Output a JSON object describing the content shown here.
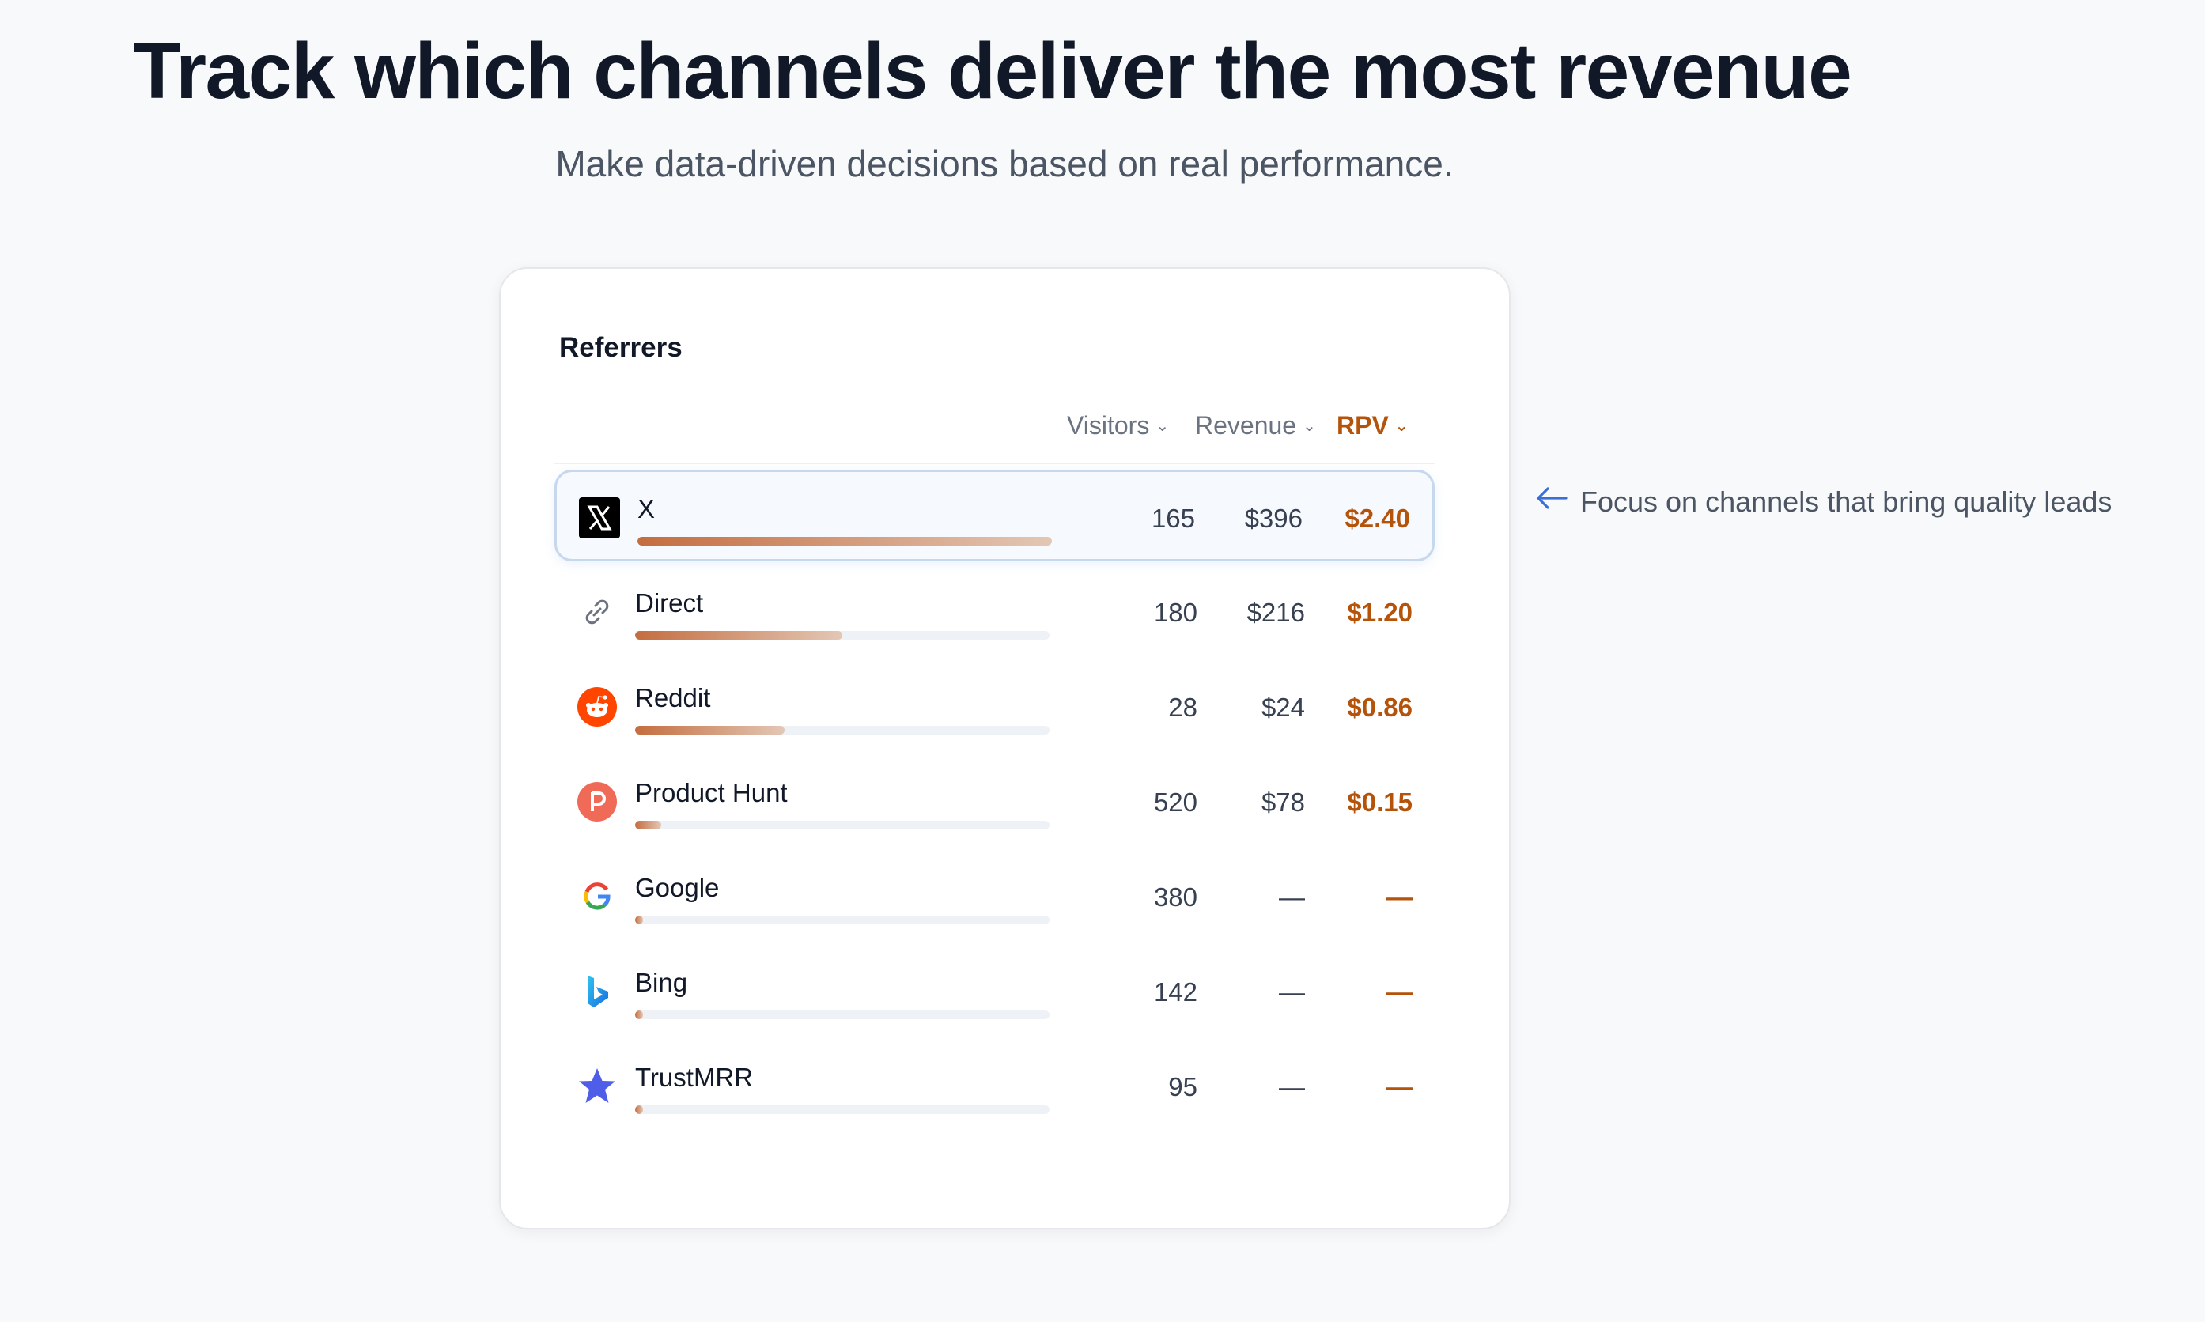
{
  "headline": "Track which channels deliver the most revenue",
  "subheadline": "Make data-driven decisions based on real performance.",
  "card": {
    "title": "Referrers",
    "columns": {
      "visitors": "Visitors",
      "revenue": "Revenue",
      "rpv": "RPV"
    },
    "rows": [
      {
        "name": "X",
        "visitors": "165",
        "revenue": "$396",
        "rpv": "$2.40",
        "bar": 1.0,
        "icon": "x-logo-icon"
      },
      {
        "name": "Direct",
        "visitors": "180",
        "revenue": "$216",
        "rpv": "$1.20",
        "bar": 0.5,
        "icon": "link-icon"
      },
      {
        "name": "Reddit",
        "visitors": "28",
        "revenue": "$24",
        "rpv": "$0.86",
        "bar": 0.36,
        "icon": "reddit-icon"
      },
      {
        "name": "Product Hunt",
        "visitors": "520",
        "revenue": "$78",
        "rpv": "$0.15",
        "bar": 0.063,
        "icon": "product-hunt-icon"
      },
      {
        "name": "Google",
        "visitors": "380",
        "revenue": "—",
        "rpv": "—",
        "bar": 0.02,
        "icon": "google-icon"
      },
      {
        "name": "Bing",
        "visitors": "142",
        "revenue": "—",
        "rpv": "—",
        "bar": 0.02,
        "icon": "bing-icon"
      },
      {
        "name": "TrustMRR",
        "visitors": "95",
        "revenue": "—",
        "rpv": "—",
        "bar": 0.02,
        "icon": "star-icon"
      }
    ]
  },
  "callout": {
    "text": "Focus on channels that bring quality leads",
    "icon": "arrow-left-icon"
  },
  "colors": {
    "accent": "#b45309",
    "bar_start": "#c46d3f",
    "bar_end": "#e3c7b5",
    "highlight_border": "#c7d7ec",
    "arrow": "#3b6fd8"
  }
}
